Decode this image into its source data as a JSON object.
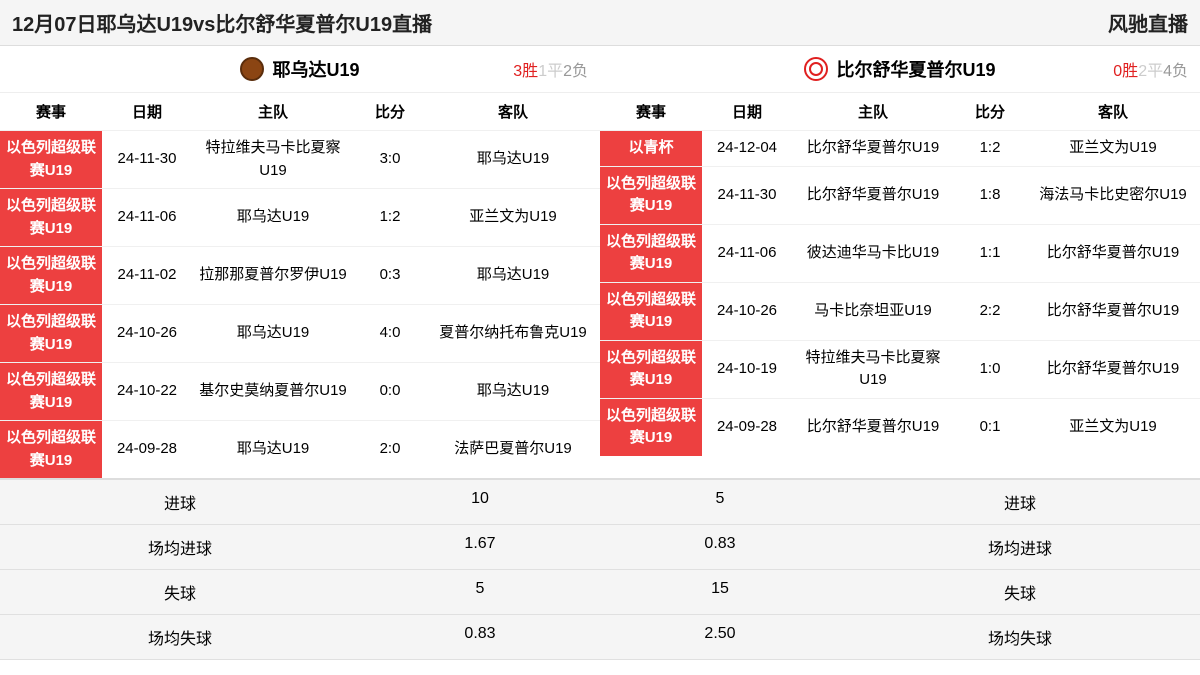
{
  "header": {
    "title": "12月07日耶乌达U19vs比尔舒华夏普尔U19直播",
    "brand": "风驰直播"
  },
  "columns": {
    "comp": "赛事",
    "date": "日期",
    "home": "主队",
    "score": "比分",
    "away": "客队"
  },
  "team1": {
    "name": "耶乌达U19",
    "record": {
      "win": "3胜",
      "draw": "1平",
      "lose": "2负"
    },
    "matches": [
      {
        "comp": "以色列超级联赛U19",
        "date": "24-11-30",
        "home": "特拉维夫马卡比夏察U19",
        "score": "3:0",
        "away": "耶乌达U19"
      },
      {
        "comp": "以色列超级联赛U19",
        "date": "24-11-06",
        "home": "耶乌达U19",
        "score": "1:2",
        "away": "亚兰文为U19"
      },
      {
        "comp": "以色列超级联赛U19",
        "date": "24-11-02",
        "home": "拉那那夏普尔罗伊U19",
        "score": "0:3",
        "away": "耶乌达U19"
      },
      {
        "comp": "以色列超级联赛U19",
        "date": "24-10-26",
        "home": "耶乌达U19",
        "score": "4:0",
        "away": "夏普尔纳托布鲁克U19"
      },
      {
        "comp": "以色列超级联赛U19",
        "date": "24-10-22",
        "home": "基尔史莫纳夏普尔U19",
        "score": "0:0",
        "away": "耶乌达U19"
      },
      {
        "comp": "以色列超级联赛U19",
        "date": "24-09-28",
        "home": "耶乌达U19",
        "score": "2:0",
        "away": "法萨巴夏普尔U19"
      }
    ]
  },
  "team2": {
    "name": "比尔舒华夏普尔U19",
    "record": {
      "win": "0胜",
      "draw": "2平",
      "lose": "4负"
    },
    "matches": [
      {
        "comp": "以青杯",
        "date": "24-12-04",
        "home": "比尔舒华夏普尔U19",
        "score": "1:2",
        "away": "亚兰文为U19"
      },
      {
        "comp": "以色列超级联赛U19",
        "date": "24-11-30",
        "home": "比尔舒华夏普尔U19",
        "score": "1:8",
        "away": "海法马卡比史密尔U19"
      },
      {
        "comp": "以色列超级联赛U19",
        "date": "24-11-06",
        "home": "彼达迪华马卡比U19",
        "score": "1:1",
        "away": "比尔舒华夏普尔U19"
      },
      {
        "comp": "以色列超级联赛U19",
        "date": "24-10-26",
        "home": "马卡比奈坦亚U19",
        "score": "2:2",
        "away": "比尔舒华夏普尔U19"
      },
      {
        "comp": "以色列超级联赛U19",
        "date": "24-10-19",
        "home": "特拉维夫马卡比夏察U19",
        "score": "1:0",
        "away": "比尔舒华夏普尔U19"
      },
      {
        "comp": "以色列超级联赛U19",
        "date": "24-09-28",
        "home": "比尔舒华夏普尔U19",
        "score": "0:1",
        "away": "亚兰文为U19"
      }
    ]
  },
  "stats": [
    {
      "label": "进球",
      "v1": "10",
      "v2": "5"
    },
    {
      "label": "场均进球",
      "v1": "1.67",
      "v2": "0.83"
    },
    {
      "label": "失球",
      "v1": "5",
      "v2": "15"
    },
    {
      "label": "场均失球",
      "v1": "0.83",
      "v2": "2.50"
    }
  ],
  "colors": {
    "red": "#ed4040",
    "gray_bg": "#f5f5f5"
  }
}
